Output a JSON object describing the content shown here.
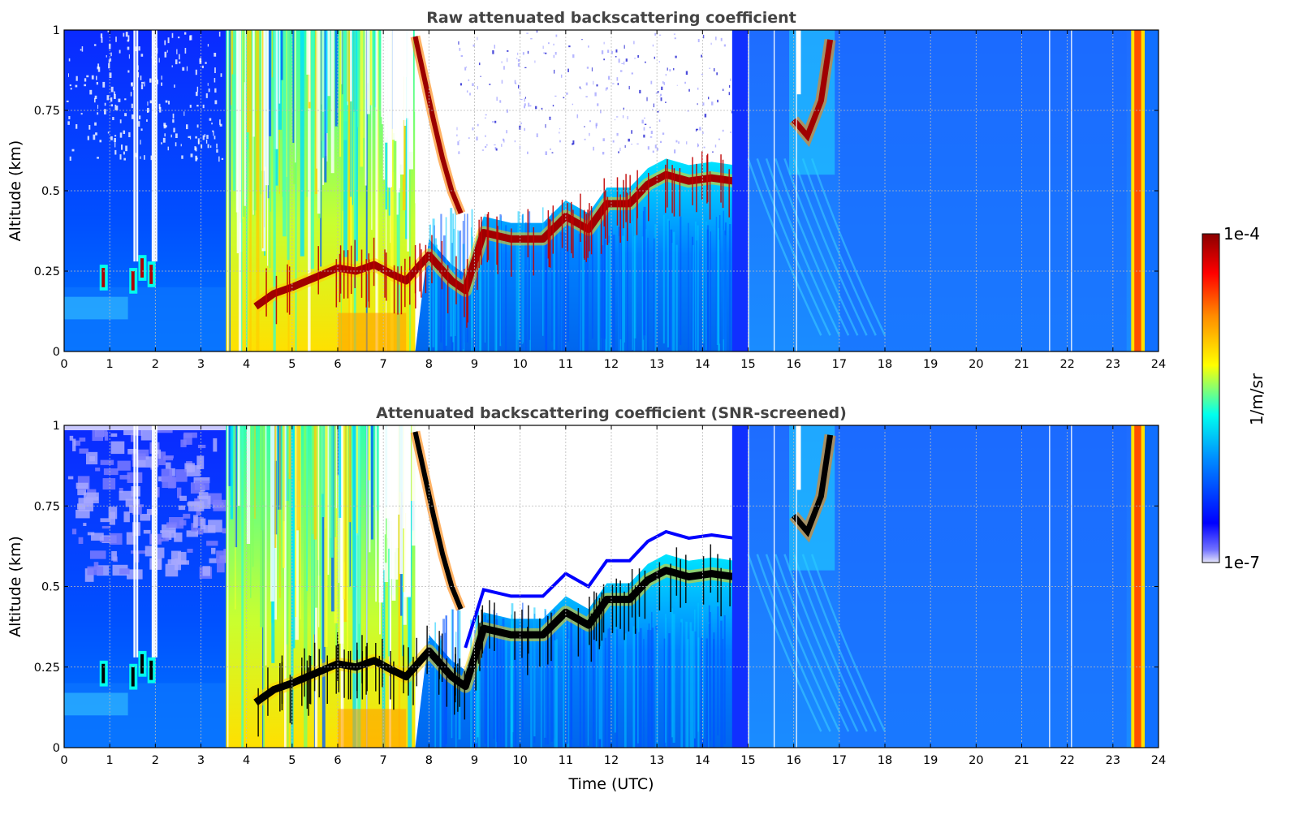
{
  "chart_data": [
    {
      "type": "heatmap",
      "title": "Raw attenuated backscattering coefficient",
      "xlabel": "",
      "ylabel": "Altitude (km)",
      "xlim": [
        0,
        24
      ],
      "ylim": [
        0,
        1
      ],
      "x_ticks": [
        "0",
        "1",
        "2",
        "3",
        "4",
        "5",
        "6",
        "7",
        "8",
        "9",
        "10",
        "11",
        "12",
        "13",
        "14",
        "15",
        "16",
        "17",
        "18",
        "19",
        "20",
        "21",
        "22",
        "23",
        "24"
      ],
      "y_ticks": [
        "0",
        "0.25",
        "0.5",
        "0.75",
        "1"
      ],
      "grid": true,
      "colorscale": "jet",
      "layers": {
        "fog_top_trace": [
          [
            4.2,
            0.14
          ],
          [
            4.6,
            0.18
          ],
          [
            5.0,
            0.2
          ],
          [
            5.5,
            0.23
          ],
          [
            6.0,
            0.26
          ],
          [
            6.4,
            0.25
          ],
          [
            6.8,
            0.27
          ],
          [
            7.2,
            0.24
          ],
          [
            7.5,
            0.22
          ],
          [
            8.0,
            0.3
          ],
          [
            8.5,
            0.22
          ],
          [
            8.8,
            0.19
          ],
          [
            9.2,
            0.37
          ],
          [
            9.8,
            0.35
          ],
          [
            10.5,
            0.35
          ],
          [
            11.0,
            0.42
          ],
          [
            11.5,
            0.38
          ],
          [
            11.9,
            0.46
          ],
          [
            12.4,
            0.46
          ],
          [
            12.8,
            0.52
          ],
          [
            13.2,
            0.55
          ],
          [
            13.7,
            0.53
          ],
          [
            14.2,
            0.54
          ],
          [
            14.7,
            0.53
          ]
        ],
        "descending_layer": [
          [
            7.7,
            0.98
          ],
          [
            7.9,
            0.85
          ],
          [
            8.1,
            0.72
          ],
          [
            8.3,
            0.6
          ],
          [
            8.5,
            0.5
          ],
          [
            8.7,
            0.43
          ]
        ],
        "upper_cloud_16h": [
          [
            16.0,
            0.72
          ],
          [
            16.3,
            0.67
          ],
          [
            16.6,
            0.78
          ],
          [
            16.8,
            0.97
          ]
        ],
        "aerosol_layer_2h": [
          [
            0.85,
            0.23
          ],
          [
            1.5,
            0.22
          ],
          [
            1.7,
            0.26
          ],
          [
            1.9,
            0.24
          ]
        ],
        "high_signal_band": [
          23.4,
          23.7
        ]
      }
    },
    {
      "type": "heatmap",
      "title": "Attenuated backscattering coefficient (SNR-screened)",
      "xlabel": "Time (UTC)",
      "ylabel": "Altitude (km)",
      "xlim": [
        0,
        24
      ],
      "ylim": [
        0,
        1
      ],
      "x_ticks": [
        "0",
        "1",
        "2",
        "3",
        "4",
        "5",
        "6",
        "7",
        "8",
        "9",
        "10",
        "11",
        "12",
        "13",
        "14",
        "15",
        "16",
        "17",
        "18",
        "19",
        "20",
        "21",
        "22",
        "23",
        "24"
      ],
      "y_ticks": [
        "0",
        "0.25",
        "0.5",
        "0.75",
        "1"
      ],
      "grid": true,
      "colorscale": "jet",
      "screened": true
    }
  ],
  "colorbar": {
    "label": "1/m/sr",
    "max_label": "1e-4",
    "min_label": "1e-7",
    "colors": [
      "#e6e6fa",
      "#0000ff",
      "#00aaff",
      "#00ffee",
      "#ffff00",
      "#ff8c00",
      "#ff0000",
      "#8b0000"
    ]
  }
}
